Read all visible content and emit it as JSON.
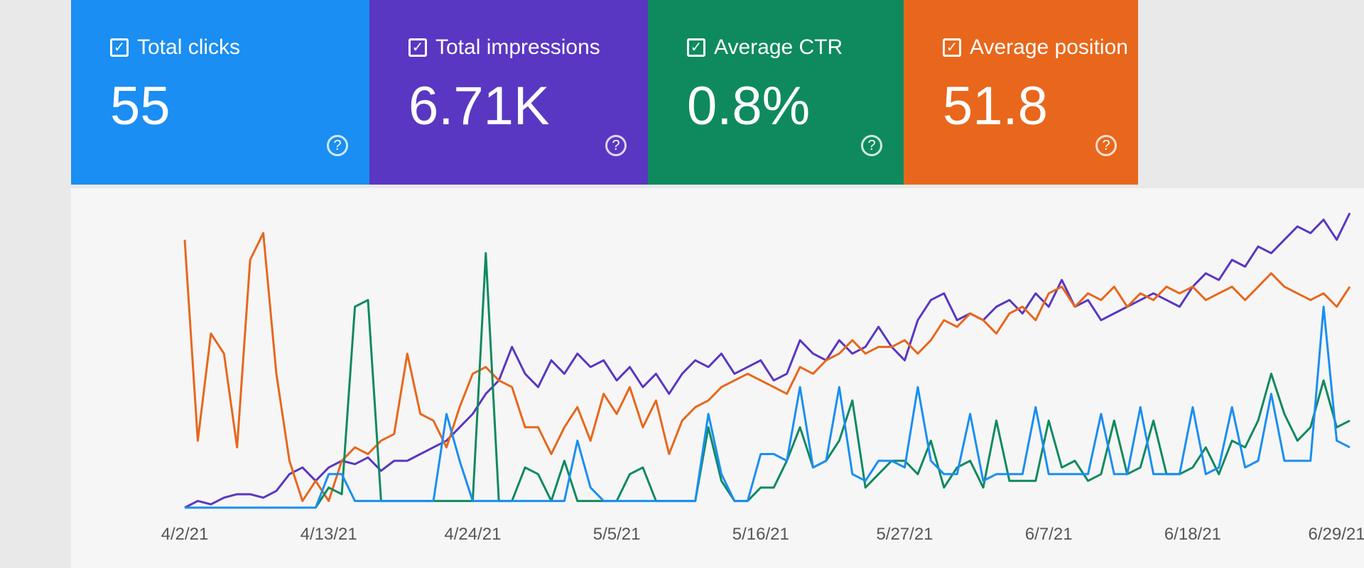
{
  "cards": [
    {
      "label": "Total clicks",
      "value": "55",
      "color": "#1a8ef2"
    },
    {
      "label": "Total impressions",
      "value": "6.71K",
      "color": "#5a37c2"
    },
    {
      "label": "Average CTR",
      "value": "0.8%",
      "color": "#0f8a5f"
    },
    {
      "label": "Average position",
      "value": "51.8",
      "color": "#e8671c"
    }
  ],
  "chart_data": {
    "type": "line",
    "categories": [
      "4/2/21",
      null,
      null,
      null,
      null,
      null,
      null,
      null,
      null,
      null,
      null,
      "4/13/21",
      null,
      null,
      null,
      null,
      null,
      null,
      null,
      null,
      null,
      null,
      "4/24/21",
      null,
      null,
      null,
      null,
      null,
      null,
      null,
      null,
      null,
      null,
      "5/5/21",
      null,
      null,
      null,
      null,
      null,
      null,
      null,
      null,
      null,
      null,
      "5/16/21",
      null,
      null,
      null,
      null,
      null,
      null,
      null,
      null,
      null,
      null,
      "5/27/21",
      null,
      null,
      null,
      null,
      null,
      null,
      null,
      null,
      null,
      null,
      "6/7/21",
      null,
      null,
      null,
      null,
      null,
      null,
      null,
      null,
      null,
      null,
      "6/18/21",
      null,
      null,
      null,
      null,
      null,
      null,
      null,
      null,
      null,
      null,
      "6/29/21",
      null
    ],
    "series": [
      {
        "color": "#5a37c2",
        "values": [
          0,
          2,
          1,
          3,
          4,
          4,
          3,
          5,
          10,
          12,
          8,
          12,
          14,
          13,
          15,
          11,
          14,
          14,
          16,
          18,
          20,
          24,
          28,
          34,
          38,
          48,
          40,
          36,
          44,
          40,
          46,
          42,
          44,
          38,
          42,
          36,
          40,
          34,
          40,
          44,
          42,
          46,
          40,
          42,
          44,
          38,
          40,
          50,
          46,
          44,
          50,
          46,
          48,
          54,
          48,
          44,
          56,
          62,
          64,
          56,
          58,
          56,
          60,
          62,
          58,
          64,
          60,
          68,
          60,
          62,
          56,
          58,
          60,
          62,
          64,
          62,
          60,
          66,
          70,
          68,
          74,
          72,
          78,
          76,
          80,
          84,
          82,
          86,
          80,
          88
        ]
      },
      {
        "color": "#e8671c",
        "values": [
          80,
          20,
          52,
          46,
          18,
          74,
          82,
          40,
          14,
          2,
          8,
          2,
          14,
          18,
          16,
          20,
          22,
          46,
          28,
          26,
          18,
          30,
          40,
          42,
          38,
          36,
          24,
          24,
          16,
          24,
          30,
          20,
          34,
          28,
          36,
          24,
          32,
          16,
          26,
          30,
          32,
          36,
          38,
          40,
          38,
          36,
          34,
          42,
          40,
          44,
          46,
          50,
          46,
          48,
          48,
          50,
          46,
          50,
          56,
          54,
          58,
          56,
          52,
          58,
          60,
          56,
          64,
          66,
          60,
          64,
          62,
          66,
          60,
          64,
          62,
          66,
          64,
          66,
          62,
          64,
          66,
          62,
          66,
          70,
          66,
          64,
          62,
          64,
          60,
          66
        ]
      },
      {
        "color": "#0f8a5f",
        "values": [
          0,
          0,
          0,
          0,
          0,
          0,
          0,
          0,
          0,
          0,
          0,
          6,
          4,
          60,
          62,
          2,
          2,
          2,
          2,
          2,
          2,
          2,
          2,
          76,
          2,
          2,
          12,
          10,
          2,
          14,
          2,
          2,
          2,
          2,
          10,
          12,
          2,
          2,
          2,
          2,
          24,
          8,
          2,
          2,
          6,
          6,
          14,
          24,
          12,
          14,
          20,
          32,
          6,
          10,
          14,
          14,
          10,
          20,
          6,
          12,
          14,
          6,
          26,
          8,
          8,
          8,
          26,
          12,
          14,
          8,
          10,
          26,
          10,
          12,
          26,
          10,
          10,
          12,
          18,
          10,
          20,
          18,
          26,
          40,
          28,
          20,
          24,
          38,
          24,
          26
        ]
      },
      {
        "color": "#1a8ef2",
        "values": [
          0,
          0,
          0,
          0,
          0,
          0,
          0,
          0,
          0,
          0,
          0,
          10,
          10,
          2,
          2,
          2,
          2,
          2,
          2,
          2,
          28,
          14,
          2,
          2,
          2,
          2,
          2,
          2,
          2,
          2,
          20,
          6,
          2,
          2,
          2,
          2,
          2,
          2,
          2,
          2,
          28,
          10,
          2,
          2,
          16,
          16,
          14,
          36,
          12,
          14,
          36,
          10,
          8,
          14,
          14,
          12,
          36,
          14,
          10,
          10,
          28,
          8,
          10,
          10,
          10,
          30,
          10,
          10,
          10,
          10,
          28,
          10,
          10,
          30,
          10,
          10,
          10,
          30,
          10,
          12,
          30,
          12,
          14,
          34,
          14,
          14,
          14,
          60,
          20,
          18
        ]
      }
    ]
  }
}
